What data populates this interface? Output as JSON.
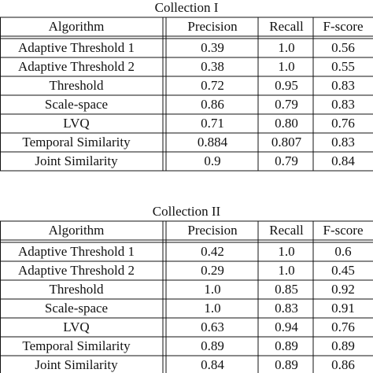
{
  "tables": [
    {
      "caption": "Collection I",
      "header": [
        "Algorithm",
        "Precision",
        "Recall",
        "F-score"
      ],
      "rows": [
        [
          "Adaptive Threshold 1",
          "0.39",
          "1.0",
          "0.56"
        ],
        [
          "Adaptive Threshold 2",
          "0.38",
          "1.0",
          "0.55"
        ],
        [
          "Threshold",
          "0.72",
          "0.95",
          "0.83"
        ],
        [
          "Scale-space",
          "0.86",
          "0.79",
          "0.83"
        ],
        [
          "LVQ",
          "0.71",
          "0.80",
          "0.76"
        ],
        [
          "Temporal Similarity",
          "0.884",
          "0.807",
          "0.83"
        ],
        [
          "Joint Similarity",
          "0.9",
          "0.79",
          "0.84"
        ]
      ]
    },
    {
      "caption": "Collection II",
      "header": [
        "Algorithm",
        "Precision",
        "Recall",
        "F-score"
      ],
      "rows": [
        [
          "Adaptive Threshold 1",
          "0.42",
          "1.0",
          "0.6"
        ],
        [
          "Adaptive Threshold 2",
          "0.29",
          "1.0",
          "0.45"
        ],
        [
          "Threshold",
          "1.0",
          "0.85",
          "0.92"
        ],
        [
          "Scale-space",
          "1.0",
          "0.83",
          "0.91"
        ],
        [
          "LVQ",
          "0.63",
          "0.94",
          "0.76"
        ],
        [
          "Temporal Similarity",
          "0.89",
          "0.89",
          "0.89"
        ],
        [
          "Joint Similarity",
          "0.84",
          "0.89",
          "0.86"
        ]
      ]
    }
  ]
}
